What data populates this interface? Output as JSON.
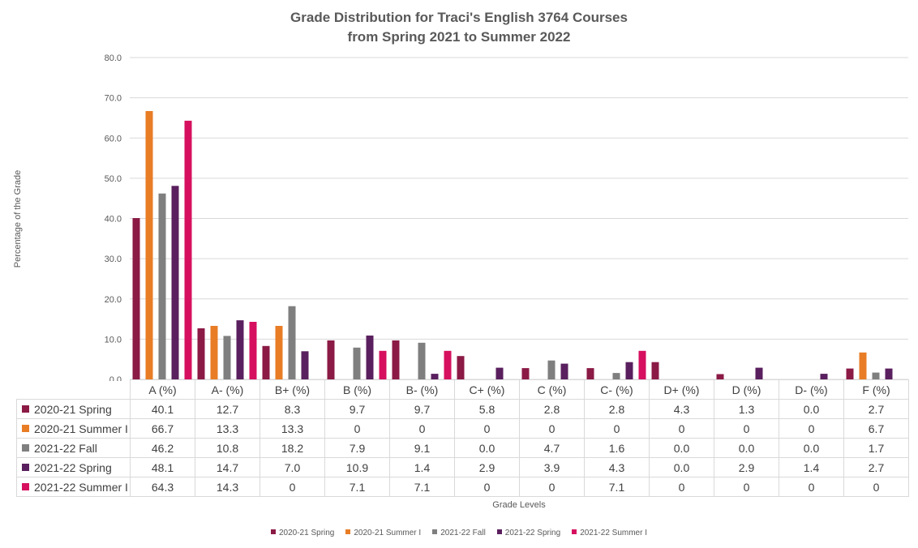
{
  "chart_data": {
    "type": "bar",
    "title": [
      "Grade Distribution for Traci's English 3764 Courses",
      "from Spring 2021 to Summer 2022"
    ],
    "xlabel": "Grade Levels",
    "ylabel": "Percentage of the Grade",
    "ylim": [
      0,
      80
    ],
    "yticks": [
      "0.0",
      "10.0",
      "20.0",
      "30.0",
      "40.0",
      "50.0",
      "60.0",
      "70.0",
      "80.0"
    ],
    "grid": true,
    "legend_position": "bottom",
    "categories": [
      "A (%)",
      "A- (%)",
      "B+ (%)",
      "B (%)",
      "B- (%)",
      "C+ (%)",
      "C (%)",
      "C- (%)",
      "D+ (%)",
      "D (%)",
      "D- (%)",
      "F (%)"
    ],
    "series": [
      {
        "name": "2020-21 Spring",
        "color": "#8b1a45",
        "values": [
          40.1,
          12.7,
          8.3,
          9.7,
          9.7,
          5.8,
          2.8,
          2.8,
          4.3,
          1.3,
          0.0,
          2.7
        ],
        "labels": [
          "40.1",
          "12.7",
          "8.3",
          "9.7",
          "9.7",
          "5.8",
          "2.8",
          "2.8",
          "4.3",
          "1.3",
          "0.0",
          "2.7"
        ]
      },
      {
        "name": "2020-21 Summer I",
        "color": "#e87d26",
        "values": [
          66.7,
          13.3,
          13.3,
          0,
          0,
          0,
          0,
          0,
          0,
          0,
          0,
          6.7
        ],
        "labels": [
          "66.7",
          "13.3",
          "13.3",
          "0",
          "0",
          "0",
          "0",
          "0",
          "0",
          "0",
          "0",
          "6.7"
        ]
      },
      {
        "name": "2021-22 Fall",
        "color": "#7f7f7f",
        "values": [
          46.2,
          10.8,
          18.2,
          7.9,
          9.1,
          0.0,
          4.7,
          1.6,
          0.0,
          0.0,
          0.0,
          1.7
        ],
        "labels": [
          "46.2",
          "10.8",
          "18.2",
          "7.9",
          "9.1",
          "0.0",
          "4.7",
          "1.6",
          "0.0",
          "0.0",
          "0.0",
          "1.7"
        ]
      },
      {
        "name": "2021-22 Spring",
        "color": "#5a1f5e",
        "values": [
          48.1,
          14.7,
          7.0,
          10.9,
          1.4,
          2.9,
          3.9,
          4.3,
          0.0,
          2.9,
          1.4,
          2.7
        ],
        "labels": [
          "48.1",
          "14.7",
          "7.0",
          "10.9",
          "1.4",
          "2.9",
          "3.9",
          "4.3",
          "0.0",
          "2.9",
          "1.4",
          "2.7"
        ]
      },
      {
        "name": "2021-22 Summer I",
        "color": "#d6105f",
        "values": [
          64.3,
          14.3,
          0,
          7.1,
          7.1,
          0,
          0,
          7.1,
          0,
          0,
          0,
          0
        ],
        "labels": [
          "64.3",
          "14.3",
          "0",
          "7.1",
          "7.1",
          "0",
          "0",
          "7.1",
          "0",
          "0",
          "0",
          "0"
        ]
      }
    ]
  }
}
